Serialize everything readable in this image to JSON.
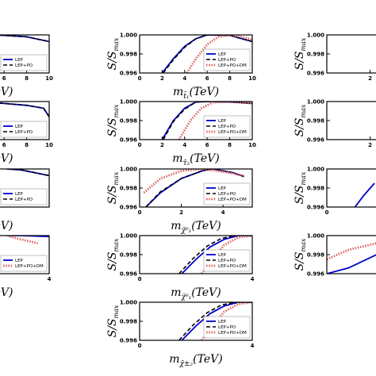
{
  "chart_data": [
    {
      "type": "line",
      "xlabel": {
        "base": "m",
        "sub": "t̃₁",
        "unit": "(TeV)"
      },
      "ylabel": {
        "base": "S/S",
        "sub": "max"
      },
      "xlim": [
        0,
        10
      ],
      "xticks": [
        0,
        2,
        4,
        6,
        8,
        10
      ],
      "ylim": [
        0.996,
        1
      ],
      "yticks": [
        0.996,
        0.998,
        {
          "value": 1,
          "label": "1.000"
        }
      ],
      "legend": "lower right",
      "series": [
        {
          "name": "LEP",
          "color": "#0000cc",
          "x": [
            2,
            3,
            4,
            5,
            6,
            8,
            10
          ],
          "values": [
            0.996,
            0.9975,
            0.9988,
            0.9996,
            1,
            0.99995,
            0.9993
          ]
        },
        {
          "name": "LEP+PO",
          "color": "#000000",
          "x": [
            2.1,
            3,
            4,
            5,
            6,
            8,
            10
          ],
          "values": [
            0.996,
            0.9974,
            0.9987,
            0.9996,
            1,
            0.99995,
            0.9993
          ]
        },
        {
          "name": "LEP+PO+DM",
          "color": "#e06666",
          "x": [
            4.2,
            5,
            6,
            7,
            8,
            9,
            10
          ],
          "values": [
            0.996,
            0.9975,
            0.999,
            0.9998,
            1,
            0.9998,
            0.9995
          ]
        }
      ]
    },
    {
      "type": "line",
      "xlabel": {
        "base": "m",
        "sub": "τ̃₂",
        "unit": "(TeV)"
      },
      "ylabel": {
        "base": "S/S",
        "sub": "max"
      },
      "xlim": [
        0,
        10
      ],
      "xticks": [
        0,
        2,
        4,
        6,
        8,
        10
      ],
      "ylim": [
        0.996,
        1
      ],
      "yticks": [
        0.996,
        0.998,
        {
          "value": 1,
          "label": "1.000"
        }
      ],
      "legend": "lower right",
      "series": [
        {
          "name": "LEP",
          "color": "#0000cc",
          "x": [
            2,
            3,
            4,
            5,
            6,
            8,
            10
          ],
          "values": [
            0.996,
            0.998,
            0.9993,
            0.99995,
            1,
            0.99995,
            0.9998
          ]
        },
        {
          "name": "LEP+PO",
          "color": "#000000",
          "x": [
            2.1,
            3,
            4,
            5,
            6,
            8,
            10
          ],
          "values": [
            0.996,
            0.9979,
            0.9992,
            0.99995,
            1,
            0.99995,
            0.9998
          ]
        },
        {
          "name": "LEP+PO+DM",
          "color": "#e06666",
          "x": [
            3.5,
            4.5,
            5.5,
            6.5,
            8,
            10
          ],
          "values": [
            0.996,
            0.998,
            0.9993,
            0.9999,
            1,
            0.9998
          ]
        }
      ]
    },
    {
      "type": "line",
      "xlabel": {
        "base": "m",
        "sub": "χ̃⁰₁",
        "unit": "(TeV)"
      },
      "ylabel": {
        "base": "S/S",
        "sub": "max"
      },
      "xlim": [
        0,
        5.4
      ],
      "xticks": [
        0,
        2,
        4
      ],
      "ylim": [
        0.996,
        1
      ],
      "yticks": [
        0.996,
        0.998,
        {
          "value": 1,
          "label": "1.000"
        }
      ],
      "legend": "lower right",
      "series": [
        {
          "name": "LEP",
          "color": "#0000cc",
          "x": [
            0.3,
            1,
            2,
            3,
            3.5,
            4.5,
            5
          ],
          "values": [
            0.996,
            0.9975,
            0.999,
            0.9998,
            1,
            0.9996,
            0.9992
          ]
        },
        {
          "name": "LEP+PO",
          "color": "#000000",
          "x": [
            0.3,
            1,
            2,
            3,
            3.5,
            4.5,
            5
          ],
          "values": [
            0.996,
            0.9976,
            0.999,
            0.9998,
            1,
            0.9996,
            0.9992
          ]
        },
        {
          "name": "LEP+PO+DM",
          "color": "#e06666",
          "x": [
            0.2,
            1,
            2,
            3,
            4,
            5
          ],
          "values": [
            0.9975,
            0.999,
            0.9998,
            1,
            0.9997,
            0.9993
          ]
        }
      ]
    },
    {
      "type": "line",
      "xlabel": {
        "base": "m",
        "sub": "χ̃⁰₁",
        "unit": "(TeV)"
      },
      "ylabel": {
        "base": "S/S",
        "sub": "max"
      },
      "xlim": [
        0,
        4
      ],
      "xticks": [
        0,
        4
      ],
      "ylim": [
        0.996,
        1
      ],
      "yticks": [
        0.996,
        0.998,
        {
          "value": 1,
          "label": "1.000"
        }
      ],
      "legend": "lower right",
      "series": [
        {
          "name": "LEP",
          "color": "#0000cc",
          "x": [
            1.5,
            2,
            2.5,
            3,
            3.5,
            4
          ],
          "values": [
            0.996,
            0.9975,
            0.9988,
            0.9996,
            1,
            1
          ]
        },
        {
          "name": "LEP+PO",
          "color": "#000000",
          "x": [
            1.4,
            1.9,
            2.4,
            2.9,
            3.4,
            4
          ],
          "values": [
            0.996,
            0.9976,
            0.9989,
            0.9997,
            1,
            1
          ]
        },
        {
          "name": "LEP+PO+DM",
          "color": "#e06666",
          "x": [
            2.2,
            2.6,
            3,
            3.5,
            4
          ],
          "values": [
            0.996,
            0.9975,
            0.999,
            0.9998,
            1
          ]
        }
      ]
    },
    {
      "type": "line",
      "xlabel": {
        "base": "m",
        "sub": "χ̃±₂",
        "unit": "(TeV)"
      },
      "ylabel": {
        "base": "S/S",
        "sub": "max"
      },
      "xlim": [
        0,
        4
      ],
      "xticks": [
        0,
        4
      ],
      "ylim": [
        0.996,
        1
      ],
      "yticks": [
        0.996,
        0.998,
        {
          "value": 1,
          "label": "1.000"
        }
      ],
      "legend": "lower right",
      "series": [
        {
          "name": "LEP",
          "color": "#0000cc",
          "x": [
            1.5,
            2,
            2.5,
            3,
            3.5,
            4
          ],
          "values": [
            0.996,
            0.9975,
            0.9988,
            0.9996,
            1,
            1
          ]
        },
        {
          "name": "LEP+PO",
          "color": "#000000",
          "x": [
            1.4,
            1.9,
            2.4,
            2.9,
            3.4,
            4
          ],
          "values": [
            0.996,
            0.9976,
            0.9989,
            0.9997,
            1,
            1
          ]
        },
        {
          "name": "LEP+PO+DM",
          "color": "#e06666",
          "x": [
            2.2,
            2.6,
            3,
            3.5,
            4
          ],
          "values": [
            0.996,
            0.9975,
            0.999,
            0.9998,
            1
          ]
        }
      ]
    },
    {
      "type": "line",
      "xlabel": {
        "base": "m",
        "unit": "(TeV)"
      },
      "xlim": [
        0,
        10
      ],
      "xticks": [
        6,
        8,
        10
      ],
      "ylim": [
        0.996,
        1
      ],
      "legend": "lower right",
      "series": [
        {
          "name": "LEP",
          "color": "#0000cc",
          "x": [
            5,
            6,
            8,
            10
          ],
          "values": [
            1,
            0.99995,
            0.9998,
            0.9993
          ]
        },
        {
          "name": "LEP+PO",
          "color": "#000000",
          "x": [
            5,
            6,
            8,
            10
          ],
          "values": [
            1,
            0.99995,
            0.9998,
            0.9993
          ]
        }
      ]
    },
    {
      "type": "line",
      "xlabel": {
        "base": "m",
        "unit": "(TeV)"
      },
      "xlim": [
        0,
        10
      ],
      "xticks": [
        6,
        8,
        10
      ],
      "ylim": [
        0.996,
        1
      ],
      "legend": "lower right",
      "series": [
        {
          "name": "LEP",
          "color": "#0000cc",
          "x": [
            5,
            6,
            8,
            9.5,
            10
          ],
          "values": [
            0.9999,
            0.9998,
            0.9996,
            0.9993,
            0.9984
          ]
        },
        {
          "name": "LEP+PO",
          "color": "#000000",
          "x": [
            5,
            6,
            8,
            9.5,
            10
          ],
          "values": [
            0.9999,
            0.9998,
            0.9996,
            0.9993,
            0.9984
          ]
        }
      ]
    },
    {
      "type": "line",
      "xlabel": {
        "base": "m",
        "unit": "(TeV)"
      },
      "xlim": [
        0,
        4
      ],
      "ylim": [
        0.996,
        1
      ],
      "legend": "lower right",
      "series": [
        {
          "name": "LEP",
          "color": "#0000cc",
          "x": [
            2.5,
            3,
            3.5,
            4
          ],
          "values": [
            1,
            0.9999,
            0.9996,
            0.9993
          ]
        },
        {
          "name": "LEP+PO",
          "color": "#000000",
          "x": [
            2.5,
            3,
            3.5,
            4
          ],
          "values": [
            1,
            0.9999,
            0.9996,
            0.9993
          ]
        }
      ]
    },
    {
      "type": "line",
      "xlabel": {
        "base": "m",
        "unit": "(TeV)"
      },
      "xlim": [
        0,
        4
      ],
      "xticks": [
        4
      ],
      "ylim": [
        0.996,
        1
      ],
      "legend": "lower right",
      "series": [
        {
          "name": "LEP",
          "color": "#0000cc",
          "x": [
            2.5,
            3,
            3.5,
            4
          ],
          "values": [
            1,
            1,
            0.99995,
            0.9999
          ]
        },
        {
          "name": "LEP+PO+DM",
          "color": "#e06666",
          "x": [
            2.6,
            3,
            3.3,
            3.6
          ],
          "values": [
            0.9999,
            0.9996,
            0.9994,
            0.9992
          ]
        }
      ]
    },
    {
      "type": "line",
      "ylabel": {
        "base": "S/S",
        "sub": "max"
      },
      "xlim": [
        0,
        5.2
      ],
      "xticks": [
        2
      ],
      "ylim": [
        0.996,
        1
      ],
      "yticks": [
        0.996,
        0.998,
        {
          "value": 1,
          "label": "1.000"
        }
      ],
      "series": []
    },
    {
      "type": "line",
      "ylabel": {
        "base": "S/S",
        "sub": "max"
      },
      "xlim": [
        0,
        5.2
      ],
      "xticks": [
        2
      ],
      "ylim": [
        0.996,
        1
      ],
      "yticks": [
        0.996,
        0.998,
        {
          "value": 1,
          "label": "1.000"
        }
      ],
      "series": []
    },
    {
      "type": "line",
      "ylabel": {
        "base": "S/S",
        "sub": "max"
      },
      "xlim": [
        0,
        5.2
      ],
      "xticks": [
        0
      ],
      "ylim": [
        0.996,
        1
      ],
      "yticks": [
        0.996,
        0.998,
        {
          "value": 1,
          "label": "1.000"
        }
      ],
      "series": [
        {
          "name": "LEP",
          "color": "#0000cc",
          "x": [
            1.3,
            1.7,
            2.2
          ],
          "values": [
            0.996,
            0.9972,
            0.9985
          ]
        }
      ]
    },
    {
      "type": "line",
      "ylabel": {
        "base": "S/S",
        "sub": "max"
      },
      "xlim": [
        0,
        5.2
      ],
      "ylim": [
        0.996,
        1
      ],
      "yticks": [
        0.996,
        0.998,
        {
          "value": 1,
          "label": "1.000"
        }
      ],
      "series": [
        {
          "name": "LEP",
          "color": "#0000cc",
          "x": [
            0,
            1,
            2.3
          ],
          "values": [
            0.996,
            0.9966,
            0.998
          ]
        },
        {
          "name": "LEP+PO+DM",
          "color": "#e06666",
          "x": [
            0,
            1,
            2.3
          ],
          "values": [
            0.9975,
            0.9985,
            0.9992
          ]
        }
      ]
    }
  ]
}
